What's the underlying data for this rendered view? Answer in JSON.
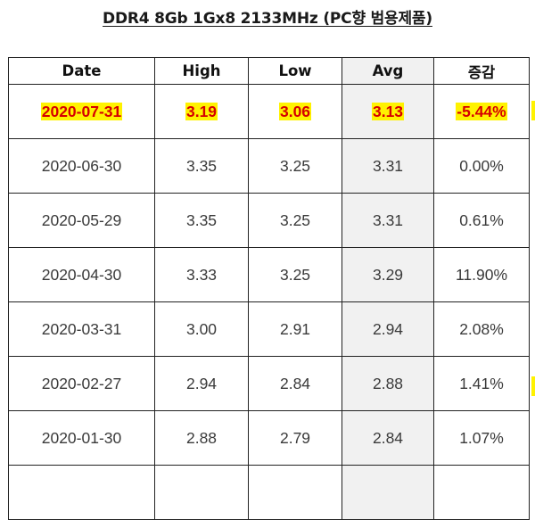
{
  "title": "DDR4 8Gb 1Gx8 2133MHz (PC향 범용제품)",
  "table": {
    "headers": {
      "date": "Date",
      "high": "High",
      "low": "Low",
      "avg": "Avg",
      "change": "증감"
    },
    "rows": [
      {
        "date": "2020-07-31",
        "high": "3.19",
        "low": "3.06",
        "avg": "3.13",
        "change": "-5.44%"
      },
      {
        "date": "2020-06-30",
        "high": "3.35",
        "low": "3.25",
        "avg": "3.31",
        "change": "0.00%"
      },
      {
        "date": "2020-05-29",
        "high": "3.35",
        "low": "3.25",
        "avg": "3.31",
        "change": "0.61%"
      },
      {
        "date": "2020-04-30",
        "high": "3.33",
        "low": "3.25",
        "avg": "3.29",
        "change": "11.90%"
      },
      {
        "date": "2020-03-31",
        "high": "3.00",
        "low": "2.91",
        "avg": "2.94",
        "change": "2.08%"
      },
      {
        "date": "2020-02-27",
        "high": "2.94",
        "low": "2.84",
        "avg": "2.88",
        "change": "1.41%"
      },
      {
        "date": "2020-01-30",
        "high": "2.88",
        "low": "2.79",
        "avg": "2.84",
        "change": "1.07%"
      }
    ]
  },
  "colors": {
    "highlight_background": "#fff200",
    "highlight_text": "#d60000",
    "avg_column_background": "#f1f1f1"
  }
}
